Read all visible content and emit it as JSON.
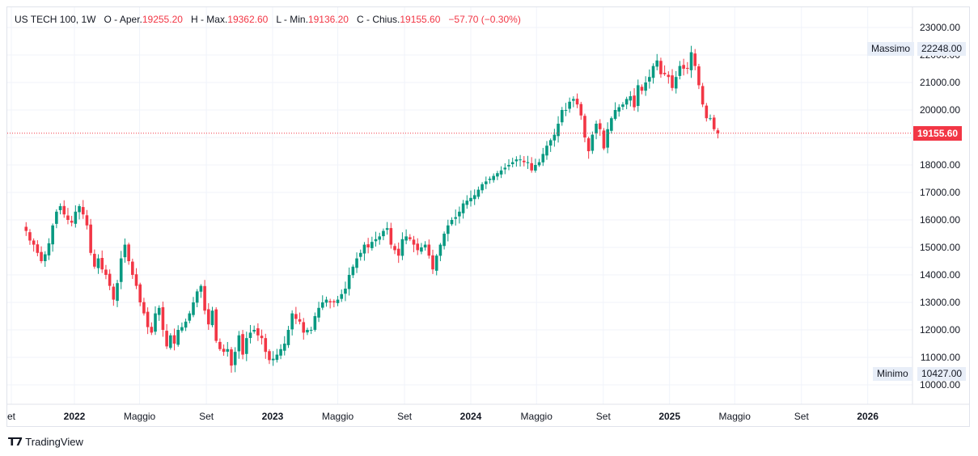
{
  "legend": {
    "symbol": "US TECH 100, 1W",
    "open_label": "O - Aper.",
    "open": "19255.20",
    "high_label": "H - Max.",
    "high": "19362.60",
    "low_label": "L - Min.",
    "low": "19136.20",
    "close_label": "C - Chius.",
    "close": "19155.60",
    "change": "−57.70 (−0.30%)"
  },
  "markers": {
    "max_label": "Massimo",
    "max_value": "22248.00",
    "min_label": "Minimo",
    "min_value": "10427.00",
    "last_price": "19155.60"
  },
  "footer": {
    "brand": "TradingView"
  },
  "colors": {
    "up": "#089981",
    "down": "#f23645",
    "grid": "#f0f3fa",
    "last": "#f23645"
  },
  "chart_data": {
    "type": "candlestick",
    "ylim": [
      9500,
      23400
    ],
    "y_ticks": [
      "10000.00",
      "11000.00",
      "12000.00",
      "13000.00",
      "14000.00",
      "15000.00",
      "16000.00",
      "17000.00",
      "18000.00",
      "19000.00",
      "20000.00",
      "21000.00",
      "22000.00",
      "23000.00"
    ],
    "x_ticks": [
      "et",
      "2022",
      "Maggio",
      "Set",
      "2023",
      "Maggio",
      "Set",
      "2024",
      "Maggio",
      "Set",
      "2025",
      "Maggio",
      "Set",
      "2026"
    ],
    "series": [
      {
        "name": "US TECH 100",
        "close_path": [
          [
            "2021-10-04",
            15600
          ],
          [
            "2021-10-11",
            15250
          ],
          [
            "2021-10-18",
            15100
          ],
          [
            "2021-10-25",
            14800
          ],
          [
            "2021-11-01",
            14500
          ],
          [
            "2021-11-08",
            14750
          ],
          [
            "2021-11-15",
            15150
          ],
          [
            "2021-11-22",
            15800
          ],
          [
            "2021-11-29",
            16300
          ],
          [
            "2021-12-06",
            16500
          ],
          [
            "2021-12-13",
            16200
          ],
          [
            "2021-12-20",
            16000
          ],
          [
            "2021-12-27",
            15900
          ],
          [
            "2022-01-03",
            16300
          ],
          [
            "2022-01-10",
            16500
          ],
          [
            "2022-01-17",
            16200
          ],
          [
            "2022-01-24",
            15800
          ],
          [
            "2022-01-31",
            14800
          ],
          [
            "2022-02-07",
            14300
          ],
          [
            "2022-02-14",
            14600
          ],
          [
            "2022-02-21",
            14200
          ],
          [
            "2022-02-28",
            14000
          ],
          [
            "2022-03-07",
            13600
          ],
          [
            "2022-03-14",
            13100
          ],
          [
            "2022-03-21",
            13700
          ],
          [
            "2022-03-28",
            14600
          ],
          [
            "2022-04-04",
            15100
          ],
          [
            "2022-04-11",
            14500
          ],
          [
            "2022-04-18",
            14000
          ],
          [
            "2022-04-25",
            13600
          ],
          [
            "2022-05-02",
            13000
          ],
          [
            "2022-05-09",
            12600
          ],
          [
            "2022-05-16",
            12100
          ],
          [
            "2022-05-23",
            11900
          ],
          [
            "2022-05-30",
            12600
          ],
          [
            "2022-06-06",
            12800
          ],
          [
            "2022-06-13",
            12000
          ],
          [
            "2022-06-20",
            11400
          ],
          [
            "2022-06-27",
            11800
          ],
          [
            "2022-07-04",
            11500
          ],
          [
            "2022-07-11",
            12000
          ],
          [
            "2022-07-18",
            12100
          ],
          [
            "2022-07-25",
            12300
          ],
          [
            "2022-08-01",
            12600
          ],
          [
            "2022-08-08",
            13000
          ],
          [
            "2022-08-15",
            13400
          ],
          [
            "2022-08-22",
            13600
          ],
          [
            "2022-08-29",
            12700
          ],
          [
            "2022-09-05",
            12200
          ],
          [
            "2022-09-12",
            12700
          ],
          [
            "2022-09-19",
            11600
          ],
          [
            "2022-09-26",
            11300
          ],
          [
            "2022-10-03",
            11200
          ],
          [
            "2022-10-10",
            11300
          ],
          [
            "2022-10-17",
            10700
          ],
          [
            "2022-10-24",
            11200
          ],
          [
            "2022-10-31",
            11800
          ],
          [
            "2022-11-07",
            11100
          ],
          [
            "2022-11-14",
            11700
          ],
          [
            "2022-11-21",
            11900
          ],
          [
            "2022-11-28",
            12000
          ],
          [
            "2022-12-05",
            11800
          ],
          [
            "2022-12-12",
            11700
          ],
          [
            "2022-12-19",
            11200
          ],
          [
            "2022-12-26",
            10900
          ],
          [
            "2023-01-02",
            10950
          ],
          [
            "2023-01-09",
            11100
          ],
          [
            "2023-01-16",
            11300
          ],
          [
            "2023-01-23",
            11500
          ],
          [
            "2023-01-30",
            12000
          ],
          [
            "2023-02-06",
            12600
          ],
          [
            "2023-02-13",
            12400
          ],
          [
            "2023-02-20",
            12300
          ],
          [
            "2023-02-27",
            11900
          ],
          [
            "2023-03-06",
            12000
          ],
          [
            "2023-03-13",
            12000
          ],
          [
            "2023-03-20",
            12500
          ],
          [
            "2023-03-27",
            12800
          ],
          [
            "2023-04-03",
            13000
          ],
          [
            "2023-04-10",
            13100
          ],
          [
            "2023-04-17",
            13000
          ],
          [
            "2023-04-24",
            13000
          ],
          [
            "2023-05-01",
            13100
          ],
          [
            "2023-05-08",
            13300
          ],
          [
            "2023-05-15",
            13500
          ],
          [
            "2023-05-22",
            14000
          ],
          [
            "2023-05-29",
            14300
          ],
          [
            "2023-06-05",
            14600
          ],
          [
            "2023-06-12",
            14800
          ],
          [
            "2023-06-19",
            15100
          ],
          [
            "2023-06-26",
            15000
          ],
          [
            "2023-07-03",
            15200
          ],
          [
            "2023-07-10",
            15300
          ],
          [
            "2023-07-17",
            15400
          ],
          [
            "2023-07-24",
            15600
          ],
          [
            "2023-07-31",
            15700
          ],
          [
            "2023-08-07",
            15100
          ],
          [
            "2023-08-14",
            14900
          ],
          [
            "2023-08-21",
            14700
          ],
          [
            "2023-08-28",
            15300
          ],
          [
            "2023-09-04",
            15400
          ],
          [
            "2023-09-11",
            15300
          ],
          [
            "2023-09-18",
            15100
          ],
          [
            "2023-09-25",
            14900
          ],
          [
            "2023-10-02",
            15000
          ],
          [
            "2023-10-09",
            15100
          ],
          [
            "2023-10-16",
            14700
          ],
          [
            "2023-10-23",
            14200
          ],
          [
            "2023-10-30",
            14700
          ],
          [
            "2023-11-06",
            15100
          ],
          [
            "2023-11-13",
            15500
          ],
          [
            "2023-11-20",
            15800
          ],
          [
            "2023-11-27",
            16000
          ],
          [
            "2023-12-04",
            16100
          ],
          [
            "2023-12-11",
            16300
          ],
          [
            "2023-12-18",
            16600
          ],
          [
            "2023-12-25",
            16700
          ],
          [
            "2024-01-01",
            16800
          ],
          [
            "2024-01-08",
            16900
          ],
          [
            "2024-01-15",
            17100
          ],
          [
            "2024-01-22",
            17300
          ],
          [
            "2024-01-29",
            17400
          ],
          [
            "2024-02-05",
            17500
          ],
          [
            "2024-02-12",
            17600
          ],
          [
            "2024-02-19",
            17700
          ],
          [
            "2024-02-26",
            17800
          ],
          [
            "2024-03-04",
            17900
          ],
          [
            "2024-03-11",
            18000
          ],
          [
            "2024-03-18",
            18100
          ],
          [
            "2024-03-25",
            18200
          ],
          [
            "2024-04-01",
            18200
          ],
          [
            "2024-04-08",
            18100
          ],
          [
            "2024-04-15",
            18100
          ],
          [
            "2024-04-22",
            17800
          ],
          [
            "2024-04-29",
            18000
          ],
          [
            "2024-05-06",
            18100
          ],
          [
            "2024-05-13",
            18400
          ],
          [
            "2024-05-20",
            18700
          ],
          [
            "2024-05-27",
            18900
          ],
          [
            "2024-06-03",
            19100
          ],
          [
            "2024-06-10",
            19500
          ],
          [
            "2024-06-17",
            20000
          ],
          [
            "2024-06-24",
            20000
          ],
          [
            "2024-07-01",
            20300
          ],
          [
            "2024-07-08",
            20400
          ],
          [
            "2024-07-15",
            20200
          ],
          [
            "2024-07-22",
            19800
          ],
          [
            "2024-07-29",
            19000
          ],
          [
            "2024-08-05",
            18500
          ],
          [
            "2024-08-12",
            19100
          ],
          [
            "2024-08-19",
            19500
          ],
          [
            "2024-08-26",
            19300
          ],
          [
            "2024-09-02",
            18600
          ],
          [
            "2024-09-09",
            19300
          ],
          [
            "2024-09-16",
            19700
          ],
          [
            "2024-09-23",
            20000
          ],
          [
            "2024-09-30",
            20100
          ],
          [
            "2024-10-07",
            20200
          ],
          [
            "2024-10-14",
            20400
          ],
          [
            "2024-10-21",
            20500
          ],
          [
            "2024-10-28",
            20100
          ],
          [
            "2024-11-04",
            20900
          ],
          [
            "2024-11-11",
            20700
          ],
          [
            "2024-11-18",
            21000
          ],
          [
            "2024-11-25",
            21200
          ],
          [
            "2024-12-02",
            21600
          ],
          [
            "2024-12-09",
            21800
          ],
          [
            "2024-12-16",
            21300
          ],
          [
            "2024-12-23",
            21300
          ],
          [
            "2024-12-30",
            21200
          ],
          [
            "2025-01-06",
            20800
          ],
          [
            "2025-01-13",
            21200
          ],
          [
            "2025-01-20",
            21600
          ],
          [
            "2025-01-27",
            21500
          ],
          [
            "2025-02-03",
            21500
          ],
          [
            "2025-02-10",
            22100
          ],
          [
            "2025-02-17",
            21600
          ],
          [
            "2025-02-24",
            20900
          ],
          [
            "2025-03-03",
            20200
          ],
          [
            "2025-03-10",
            19700
          ],
          [
            "2025-03-17",
            19700
          ],
          [
            "2025-03-24",
            19300
          ],
          [
            "2025-03-31",
            19155.6
          ]
        ]
      }
    ]
  }
}
